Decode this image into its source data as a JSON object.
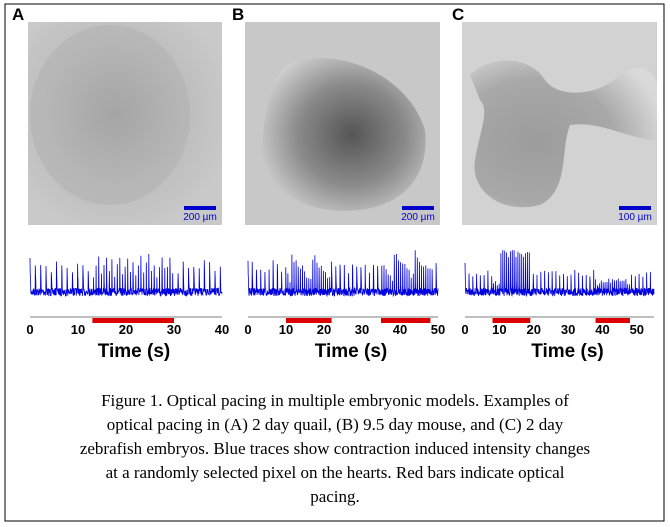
{
  "panels": [
    {
      "label": "A",
      "scale_bar": "200 µm",
      "xlabel": "Time (s)",
      "xlim": [
        0,
        40
      ],
      "xticks": [
        0,
        10,
        20,
        30,
        40
      ],
      "pacing": [
        [
          13,
          30
        ]
      ]
    },
    {
      "label": "B",
      "scale_bar": "200 µm",
      "xlabel": "Time (s)",
      "xlim": [
        0,
        50
      ],
      "xticks": [
        0,
        10,
        20,
        30,
        40,
        50
      ],
      "pacing": [
        [
          10,
          22
        ],
        [
          35,
          48
        ]
      ]
    },
    {
      "label": "C",
      "scale_bar": "100 µm",
      "xlabel": "Time (s)",
      "xlim": [
        0,
        55
      ],
      "xticks": [
        0,
        10,
        20,
        30,
        40,
        50
      ],
      "pacing": [
        [
          8,
          19
        ],
        [
          38,
          48
        ]
      ]
    }
  ],
  "caption": [
    "Figure 1.   Optical pacing in multiple embryonic models.  Examples of",
    "optical pacing in (A) 2 day quail, (B) 9.5 day mouse, and (C) 2 day",
    "zebrafish embryos.  Blue traces show contraction induced intensity changes",
    "at a randomly selected pixel on the hearts.  Red bars indicate optical",
    "pacing."
  ]
}
